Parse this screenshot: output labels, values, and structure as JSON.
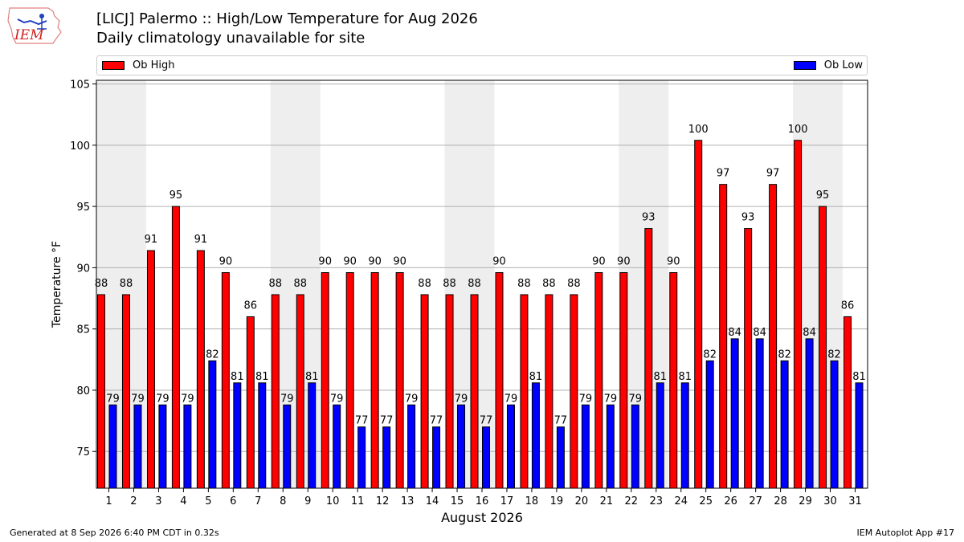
{
  "header": {
    "title": "[LICJ] Palermo :: High/Low Temperature for Aug 2026",
    "subtitle": "Daily climatology unavailable for site",
    "logo_text": "IEM"
  },
  "legend": {
    "high_label": "Ob High",
    "low_label": "Ob Low"
  },
  "colors": {
    "high": "#ff0000",
    "low": "#0000ff",
    "weekend_band": "#eeeeee",
    "grid": "#b0b0b0"
  },
  "chart_data": {
    "type": "bar",
    "xlabel": "August 2026",
    "ylabel": "Temperature °F",
    "ylim": [
      72,
      105.3
    ],
    "yticks": [
      75,
      80,
      85,
      90,
      95,
      100,
      105
    ],
    "grid": true,
    "legend_placement": "top, outside plot",
    "categories": [
      "1",
      "2",
      "3",
      "4",
      "5",
      "6",
      "7",
      "8",
      "9",
      "10",
      "11",
      "12",
      "13",
      "14",
      "15",
      "16",
      "17",
      "18",
      "19",
      "20",
      "21",
      "22",
      "23",
      "24",
      "25",
      "26",
      "27",
      "28",
      "29",
      "30",
      "31"
    ],
    "series": [
      {
        "name": "Ob High",
        "values": [
          88,
          88,
          91,
          95,
          91,
          90,
          86,
          88,
          88,
          90,
          90,
          90,
          90,
          88,
          88,
          88,
          90,
          88,
          88,
          88,
          90,
          90,
          93,
          90,
          100,
          97,
          93,
          97,
          100,
          95,
          86
        ]
      },
      {
        "name": "Ob Low",
        "values": [
          79,
          79,
          79,
          79,
          82,
          81,
          81,
          79,
          81,
          79,
          77,
          77,
          79,
          77,
          79,
          77,
          79,
          81,
          77,
          79,
          79,
          79,
          81,
          81,
          82,
          84,
          84,
          82,
          84,
          82,
          81
        ]
      }
    ],
    "bar_heights": {
      "Ob High": [
        87.8,
        87.8,
        91.4,
        95,
        91.4,
        89.6,
        86,
        87.8,
        87.8,
        89.6,
        89.6,
        89.6,
        89.6,
        87.8,
        87.8,
        87.8,
        89.6,
        87.8,
        87.8,
        87.8,
        89.6,
        89.6,
        93.2,
        89.6,
        100.4,
        96.8,
        93.2,
        96.8,
        100.4,
        95,
        86
      ],
      "Ob Low": [
        78.8,
        78.8,
        78.8,
        78.8,
        82.4,
        80.6,
        80.6,
        78.8,
        80.6,
        78.8,
        77,
        77,
        78.8,
        77,
        78.8,
        77,
        78.8,
        80.6,
        77,
        78.8,
        78.8,
        78.8,
        80.6,
        80.6,
        82.4,
        84.2,
        84.2,
        82.4,
        84.2,
        82.4,
        80.6
      ]
    },
    "weekend_days": [
      1,
      2,
      8,
      9,
      15,
      16,
      22,
      23,
      29,
      30
    ]
  },
  "footer": {
    "generated": "Generated at 8 Sep 2026 6:40 PM CDT in 0.32s",
    "app": "IEM Autoplot App #17"
  }
}
